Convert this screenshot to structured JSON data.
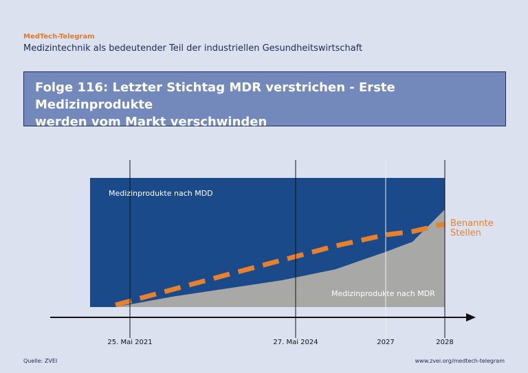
{
  "header": {
    "brand": "MedTech-Telegram",
    "subtitle": "Medizintechnik als bedeutender Teil der industriellen Gesundheitswirtschaft"
  },
  "banner": {
    "line1": "Folge 116: Letzter Stichtag MDR verstrichen - Erste Medizinprodukte",
    "line2": "werden vom Markt verschwinden"
  },
  "chart_data": {
    "type": "area",
    "x_ticks": [
      "25. Mai 2021",
      "27. Mai 2024",
      "2027",
      "2028"
    ],
    "area_labels": {
      "mdd": "Medizinprodukte nach MDD",
      "mdr": "Medizinprodukte nach MDR"
    },
    "line_label": [
      "Benannte",
      "Stellen"
    ],
    "colors": {
      "mdd": "#1b4a8a",
      "mdr": "#a8a9a7",
      "line": "#e8812e",
      "axis": "#111111"
    },
    "legend": "none",
    "grid": false
  },
  "footer": {
    "source": "Quelle: ZVEI",
    "url": "www.zvei.org/medtech-telegram"
  }
}
